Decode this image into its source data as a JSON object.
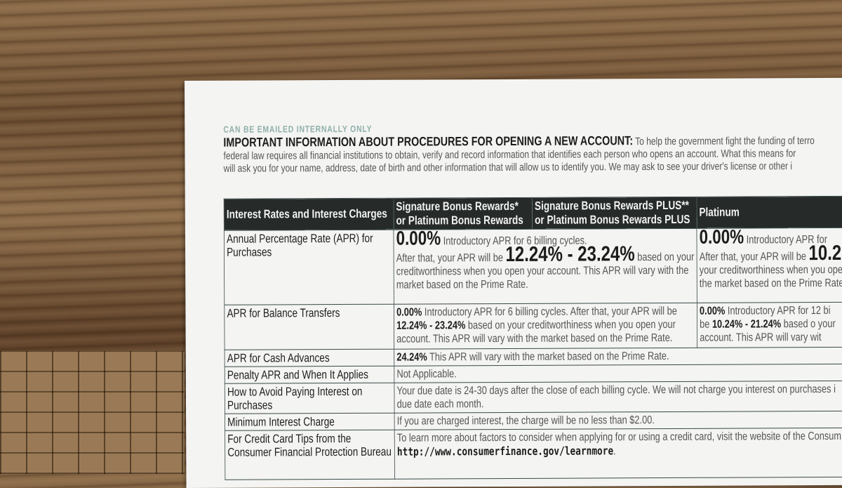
{
  "note": "CAN BE EMAILED INTERNALLY ONLY",
  "intro": {
    "heading": "IMPORTANT INFORMATION ABOUT PROCEDURES FOR OPENING A NEW ACCOUNT:",
    "line1": "To help the government fight the funding of terro",
    "line2": "federal law requires all financial institutions to obtain, verify and record information that identifies each person who opens an account. What this means for",
    "line3": "will ask you for your name, address, date of birth and other information that will allow us to identify you. We may ask to see your driver's license or other i"
  },
  "table": {
    "headers": [
      "Interest Rates and Interest Charges",
      "Signature Bonus Rewards* or Platinum Bonus Rewards",
      "Signature Bonus Rewards PLUS** or Platinum Bonus Rewards PLUS",
      "Platinum"
    ],
    "purchases": {
      "label": "Annual Percentage Rate (APR) for Purchases",
      "a_rate": "0.00%",
      "a_intro": "Introductory APR for 6 billing cycles.",
      "a_after": "After that, your APR will be",
      "a_range": "12.24% - 23.24%",
      "a_rest": "based on your creditworthiness when you open your account. This APR will vary with the market based on the Prime Rate.",
      "b_rate": "0.00%",
      "b_intro": "Introductory APR for",
      "b_after": "After that, your APR will be",
      "b_range": "10.2",
      "b_rest": "your creditworthiness when you ope the market based on the Prime Rate"
    },
    "balance": {
      "label": "APR for Balance Transfers",
      "a_rate": "0.00%",
      "a_text1": "Introductory APR for 6 billing cycles. After that, your APR will be",
      "a_range": "12.24% - 23.24%",
      "a_text2": "based on your creditworthiness when you open your account. This APR will vary with the market based on the Prime Rate.",
      "b_rate": "0.00%",
      "b_text1": "Introductory APR for 12 bi",
      "b_be": "be",
      "b_range": "10.24% - 21.24%",
      "b_text2": "based o your account. This APR will vary wit"
    },
    "cash": {
      "label": "APR for Cash Advances",
      "rate": "24.24%",
      "text": "This APR will vary with the market based on the Prime Rate."
    },
    "penalty": {
      "label": "Penalty APR and When It Applies",
      "text": "Not Applicable."
    },
    "avoid": {
      "label": "How to Avoid Paying Interest on Purchases",
      "text": "Your due date is 24-30 days after the close of each billing cycle. We will not charge you interest on purchases i due date each month."
    },
    "minimum": {
      "label": "Minimum Interest Charge",
      "text": "If you are charged interest, the charge will be no less than $2.00."
    },
    "tips": {
      "label": "For Credit Card Tips from the Consumer Financial Protection Bureau",
      "text": "To learn more about factors to consider when applying for or using a credit card, visit the website of the Consum",
      "url": "http://www.consumerfinance.gov/learnmore",
      "url_end": "."
    }
  }
}
